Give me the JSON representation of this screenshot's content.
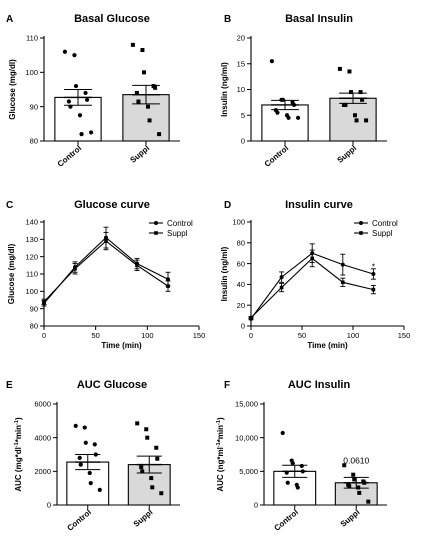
{
  "chart_data": [
    {
      "panel": "A",
      "type": "bar",
      "title": "Basal Glucose",
      "ylabel": "Glucose (mg/dl)",
      "ylim": [
        80,
        110
      ],
      "yticks": [
        80,
        90,
        100,
        110
      ],
      "categories": [
        "Control",
        "Suppl"
      ],
      "means": [
        92.7,
        93.5
      ],
      "sem": [
        2.3,
        2.7
      ],
      "points": [
        [
          106,
          105,
          96,
          94,
          92,
          91.5,
          90,
          87.5,
          82,
          82.5
        ],
        [
          108,
          106.5,
          100,
          96,
          95.5,
          94,
          91.5,
          90,
          86,
          82
        ]
      ]
    },
    {
      "panel": "B",
      "type": "bar",
      "title": "Basal Insulin",
      "ylabel": "Insulin (ng/ml)",
      "ylim": [
        0,
        20
      ],
      "yticks": [
        0,
        5,
        10,
        15,
        20
      ],
      "categories": [
        "Control",
        "Suppl"
      ],
      "means": [
        7.0,
        8.3
      ],
      "sem": [
        0.9,
        1.0
      ],
      "points": [
        [
          15.5,
          8,
          8,
          7.5,
          7,
          6,
          5.5,
          5,
          4.5,
          4.5
        ],
        [
          14,
          13.5,
          9.5,
          9.5,
          8,
          7,
          7,
          5,
          4,
          4
        ]
      ]
    },
    {
      "panel": "C",
      "type": "line",
      "title": "Glucose curve",
      "xlabel": "Time (min)",
      "ylabel": "Glucose (mg/dl)",
      "xlim": [
        0,
        150
      ],
      "xticks": [
        0,
        50,
        100,
        150
      ],
      "ylim": [
        80,
        140
      ],
      "yticks": [
        80,
        90,
        100,
        110,
        120,
        130,
        140
      ],
      "x": [
        0,
        30,
        60,
        90,
        120
      ],
      "series": [
        {
          "name": "Control",
          "marker": "circle",
          "values": [
            93,
            114,
            131,
            116,
            107
          ],
          "sem": [
            1.5,
            3,
            6,
            3,
            4
          ]
        },
        {
          "name": "Suppl",
          "marker": "square",
          "values": [
            94,
            113,
            129,
            115,
            103
          ],
          "sem": [
            1.5,
            3,
            5,
            3,
            3
          ]
        }
      ]
    },
    {
      "panel": "D",
      "type": "line",
      "title": "Insulin curve",
      "xlabel": "Time (min)",
      "ylabel": "Insulin (ng/ml)",
      "xlim": [
        0,
        150
      ],
      "xticks": [
        0,
        50,
        100,
        150
      ],
      "ylim": [
        0,
        100
      ],
      "yticks": [
        0,
        20,
        40,
        60,
        80,
        100
      ],
      "x": [
        0,
        30,
        60,
        90,
        120
      ],
      "series": [
        {
          "name": "Control",
          "marker": "circle",
          "values": [
            7,
            47,
            70,
            59,
            50
          ],
          "sem": [
            1,
            5,
            9,
            10,
            5
          ]
        },
        {
          "name": "Suppl",
          "marker": "square",
          "values": [
            8,
            37,
            65,
            42,
            35
          ],
          "sem": [
            1,
            4,
            8,
            4,
            4
          ]
        }
      ],
      "annotation": {
        "text": "*",
        "x": 120,
        "y": 58
      }
    },
    {
      "panel": "E",
      "type": "bar",
      "title": "AUC Glucose",
      "ylabel": "AUC (mg*dl-1*min-1)",
      "ylim": [
        0,
        6000
      ],
      "yticks": [
        0,
        2000,
        4000,
        6000
      ],
      "ytick_labels": [
        "0",
        "2000",
        "4000",
        "6000"
      ],
      "categories": [
        "Control",
        "Suppl"
      ],
      "means": [
        2550,
        2400
      ],
      "sem": [
        450,
        500
      ],
      "points": [
        [
          4700,
          4600,
          3700,
          3600,
          3000,
          2800,
          2400,
          1900,
          1300,
          900
        ],
        [
          4850,
          4500,
          4000,
          3400,
          2750,
          2250,
          2000,
          1600,
          1050,
          700
        ]
      ]
    },
    {
      "panel": "F",
      "type": "bar",
      "title": "AUC Insulin",
      "ylabel": "AUC (ng*ml-1*min-1)",
      "ylim": [
        0,
        15000
      ],
      "yticks": [
        0,
        5000,
        10000,
        15000
      ],
      "ytick_labels": [
        "0",
        "5,000",
        "10,000",
        "15,000"
      ],
      "categories": [
        "Control",
        "Suppl"
      ],
      "means": [
        5000,
        3300
      ],
      "sem": [
        900,
        800
      ],
      "points": [
        [
          10700,
          6600,
          6200,
          5800,
          5000,
          4800,
          3300,
          3000,
          2600
        ],
        [
          5900,
          4500,
          3800,
          3500,
          3300,
          3000,
          2800,
          2600,
          1800,
          500
        ]
      ],
      "annotation": {
        "text": "0.0610"
      }
    }
  ]
}
